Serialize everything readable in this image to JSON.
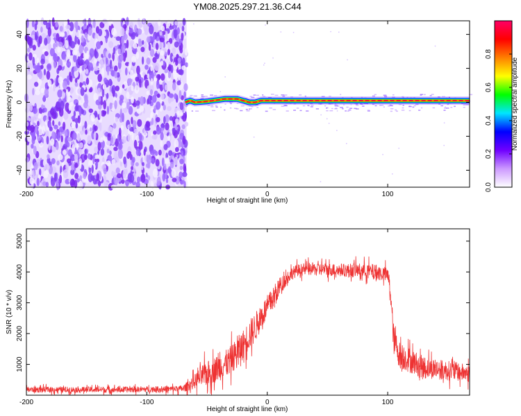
{
  "title": "YM08.2025.297.21.36.C44",
  "chart_data": [
    {
      "type": "heatmap",
      "name": "spectrogram",
      "xlabel": "Height of straight line (km)",
      "ylabel": "Frequency (Hz)",
      "xlim": [
        -200,
        168
      ],
      "ylim": [
        -50,
        48
      ],
      "xticks": [
        -200,
        -100,
        0,
        100
      ],
      "yticks": [
        -40,
        -20,
        0,
        20,
        40
      ],
      "noise_region_x": [
        -200,
        -67
      ],
      "signal_line": {
        "x": [
          -68,
          -64,
          -60,
          -50,
          -45,
          -40,
          -35,
          -30,
          -25,
          -20,
          -15,
          -10,
          -5,
          0,
          20,
          40,
          60,
          80,
          100,
          120,
          140,
          160,
          168
        ],
        "freq": [
          0,
          1,
          0,
          0.5,
          1,
          1.5,
          2,
          2,
          2,
          1,
          0,
          0,
          1,
          1,
          1,
          1,
          1,
          1,
          1,
          1,
          1,
          1,
          1
        ]
      },
      "colorbar": {
        "label": "Normalized spectral amplitude",
        "range": [
          0.0,
          1.0
        ],
        "ticks": [
          "0.0",
          "0.2",
          "0.4",
          "0.6",
          "0.8"
        ],
        "colors": [
          "#ffffff",
          "#cc99ff",
          "#7000ff",
          "#0000ff",
          "#00e5ff",
          "#00ff00",
          "#ffff00",
          "#ff8000",
          "#ff0000",
          "#ff0066"
        ]
      }
    },
    {
      "type": "line",
      "name": "snr",
      "xlabel": "Height of straight line (km)",
      "ylabel": "SNR (10 * v/v)",
      "xlim": [
        -200,
        168
      ],
      "ylim": [
        0,
        5400
      ],
      "xticks": [
        -200,
        -100,
        0,
        100
      ],
      "yticks": [
        1000,
        2000,
        3000,
        4000,
        5000
      ],
      "color": "#ee3333",
      "series": [
        {
          "name": "SNR",
          "x": [
            -200,
            -180,
            -160,
            -140,
            -120,
            -100,
            -80,
            -70,
            -66,
            -60,
            -55,
            -50,
            -45,
            -40,
            -35,
            -30,
            -25,
            -20,
            -15,
            -10,
            -5,
            0,
            5,
            10,
            15,
            20,
            25,
            30,
            40,
            50,
            60,
            70,
            80,
            90,
            95,
            100,
            102,
            105,
            110,
            120,
            130,
            140,
            150,
            160,
            168
          ],
          "values": [
            180,
            180,
            180,
            180,
            180,
            190,
            200,
            210,
            300,
            450,
            600,
            700,
            800,
            900,
            1000,
            1150,
            1400,
            1650,
            1950,
            2200,
            2550,
            2850,
            3150,
            3500,
            3750,
            3950,
            4050,
            4080,
            4100,
            4080,
            4060,
            4050,
            4050,
            4000,
            3950,
            3900,
            3500,
            1800,
            1300,
            1100,
            900,
            850,
            800,
            750,
            700
          ],
          "noise": [
            120,
            120,
            120,
            120,
            120,
            120,
            130,
            140,
            200,
            300,
            450,
            500,
            520,
            550,
            560,
            580,
            600,
            600,
            620,
            600,
            560,
            500,
            450,
            380,
            300,
            260,
            250,
            250,
            260,
            260,
            270,
            280,
            300,
            320,
            320,
            300,
            400,
            600,
            550,
            500,
            450,
            420,
            400,
            380,
            360
          ]
        }
      ]
    }
  ]
}
